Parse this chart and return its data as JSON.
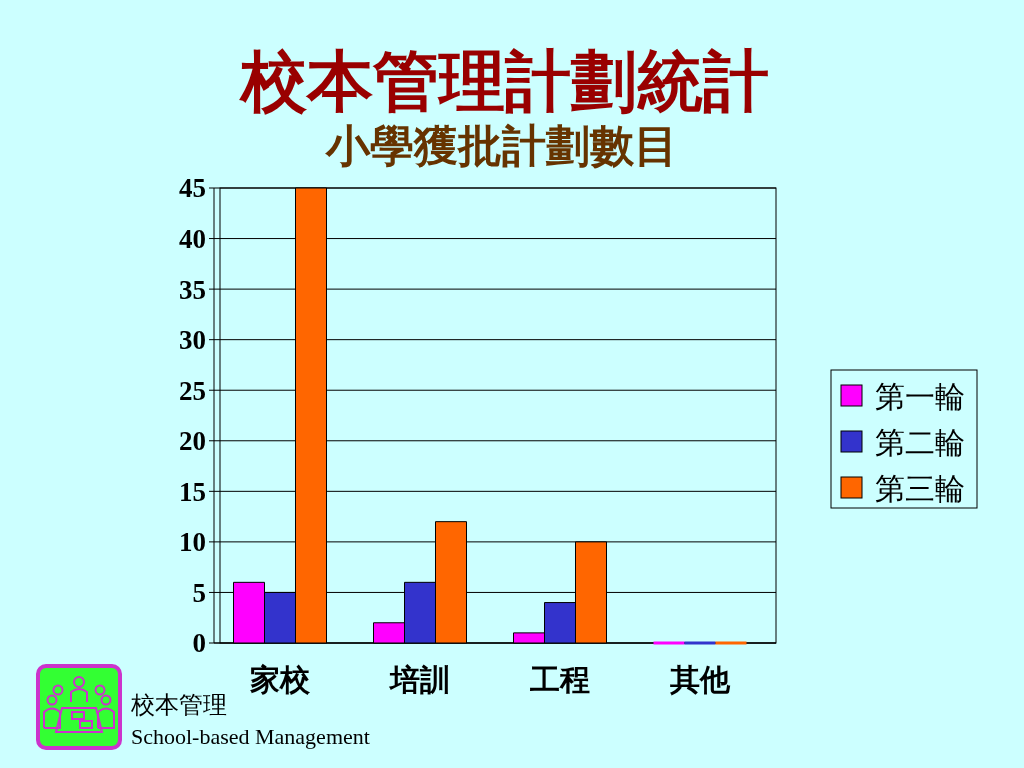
{
  "chart_data": {
    "type": "bar",
    "title": "校本管理計劃統計",
    "subtitle": "小學獲批計劃數目",
    "categories": [
      "家校",
      "培訓",
      "工程",
      "其他"
    ],
    "series": [
      {
        "name": "第一輪",
        "color": "#ff00ff",
        "values": [
          6,
          2,
          1,
          0
        ]
      },
      {
        "name": "第二輪",
        "color": "#3333cc",
        "values": [
          5,
          6,
          4,
          0
        ]
      },
      {
        "name": "第三輪",
        "color": "#ff6600",
        "values": [
          45,
          12,
          10,
          0
        ]
      }
    ],
    "ylim": [
      0,
      45
    ],
    "yticks": [
      0,
      5,
      10,
      15,
      20,
      25,
      30,
      35,
      40,
      45
    ],
    "grid": "y",
    "legend": "right",
    "annotations": [
      "校本管理",
      "School-based Management"
    ]
  }
}
